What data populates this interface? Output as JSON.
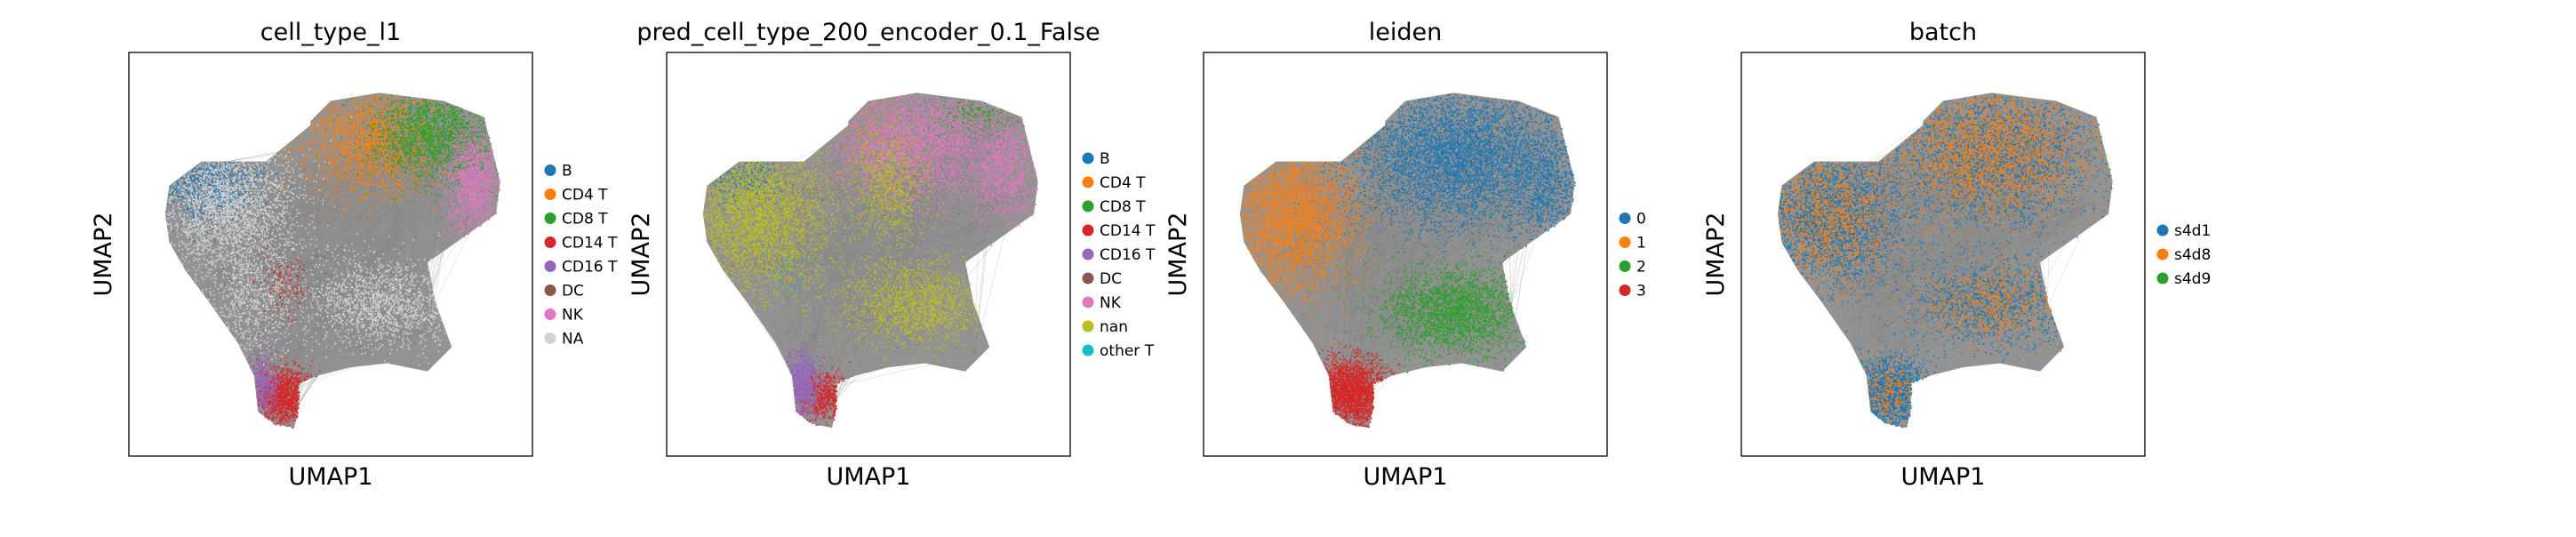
{
  "chart_data": [
    {
      "type": "scatter",
      "title": "cell_type_l1",
      "xlabel": "UMAP1",
      "ylabel": "UMAP2",
      "grid": false,
      "legend_position": "right",
      "series": [
        {
          "name": "B",
          "color": "#1f77b4"
        },
        {
          "name": "CD4 T",
          "color": "#ff7f0e"
        },
        {
          "name": "CD8 T",
          "color": "#2ca02c"
        },
        {
          "name": "CD14 T",
          "color": "#d62728"
        },
        {
          "name": "CD16 T",
          "color": "#9467bd"
        },
        {
          "name": "DC",
          "color": "#8c564b"
        },
        {
          "name": "NK",
          "color": "#e377c2"
        },
        {
          "name": "NA",
          "color": "#d3d3d3"
        }
      ]
    },
    {
      "type": "scatter",
      "title": "pred_cell_type_200_encoder_0.1_False",
      "xlabel": "UMAP1",
      "ylabel": "UMAP2",
      "grid": false,
      "legend_position": "right",
      "series": [
        {
          "name": "B",
          "color": "#1f77b4"
        },
        {
          "name": "CD4 T",
          "color": "#ff7f0e"
        },
        {
          "name": "CD8 T",
          "color": "#2ca02c"
        },
        {
          "name": "CD14 T",
          "color": "#d62728"
        },
        {
          "name": "CD16 T",
          "color": "#9467bd"
        },
        {
          "name": "DC",
          "color": "#8c564b"
        },
        {
          "name": "NK",
          "color": "#e377c2"
        },
        {
          "name": "nan",
          "color": "#bcbd22"
        },
        {
          "name": "other T",
          "color": "#17becf"
        }
      ]
    },
    {
      "type": "scatter",
      "title": "leiden",
      "xlabel": "UMAP1",
      "ylabel": "UMAP2",
      "grid": false,
      "legend_position": "right",
      "series": [
        {
          "name": "0",
          "color": "#1f77b4"
        },
        {
          "name": "1",
          "color": "#ff7f0e"
        },
        {
          "name": "2",
          "color": "#2ca02c"
        },
        {
          "name": "3",
          "color": "#d62728"
        }
      ]
    },
    {
      "type": "scatter",
      "title": "batch",
      "xlabel": "UMAP1",
      "ylabel": "UMAP2",
      "grid": false,
      "legend_position": "right",
      "series": [
        {
          "name": "s4d1",
          "color": "#1f77b4"
        },
        {
          "name": "s4d8",
          "color": "#ff7f0e"
        },
        {
          "name": "s4d9",
          "color": "#2ca02c"
        }
      ]
    }
  ]
}
